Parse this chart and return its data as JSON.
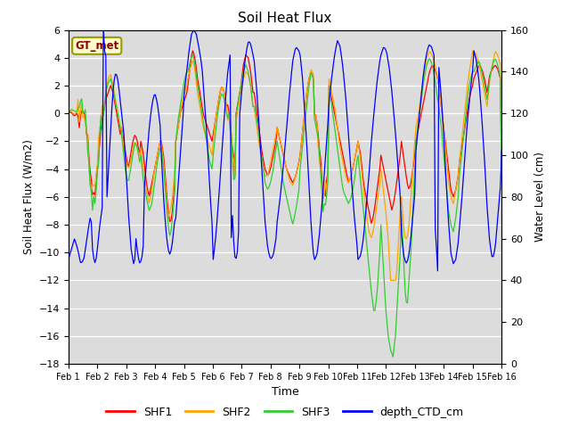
{
  "title": "Soil Heat Flux",
  "xlabel": "Time",
  "ylabel_left": "Soil Heat Flux (W/m2)",
  "ylabel_right": "Water Level (cm)",
  "ylim_left": [
    -18,
    6
  ],
  "ylim_right": [
    0,
    160
  ],
  "yticks_left": [
    -18,
    -16,
    -14,
    -12,
    -10,
    -8,
    -6,
    -4,
    -2,
    0,
    2,
    4,
    6
  ],
  "yticks_right": [
    0,
    20,
    40,
    60,
    80,
    100,
    120,
    140,
    160
  ],
  "xtick_labels": [
    "Feb 1",
    "Feb 2",
    "Feb 3",
    "Feb 4",
    "Feb 5",
    "Feb 6",
    "Feb 7",
    "Feb 8",
    "Feb 9",
    "Feb 10",
    "Feb 11",
    "Feb 12",
    "Feb 13",
    "Feb 14",
    "Feb 15",
    "Feb 16"
  ],
  "annotation_text": "GT_met",
  "annotation_color": "#8B0000",
  "annotation_bg": "#FFFFCC",
  "annotation_border": "#9B9B00",
  "line_colors": [
    "red",
    "orange",
    "limegreen",
    "blue"
  ],
  "line_labels": [
    "SHF1",
    "SHF2",
    "SHF3",
    "depth_CTD_cm"
  ],
  "background_color": "#DCDCDC",
  "fig_bg": "#FFFFFF"
}
